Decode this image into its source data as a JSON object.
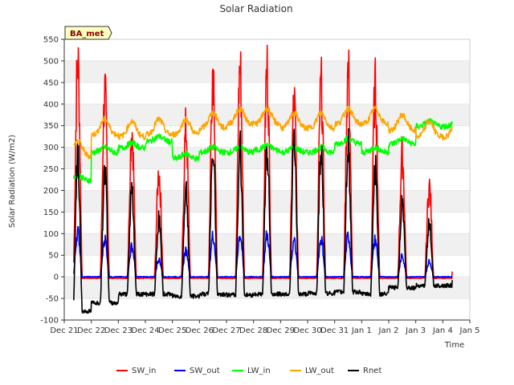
{
  "chart_data": {
    "type": "line",
    "title": "Solar Radiation",
    "xlabel": "Time",
    "ylabel": "Solar Radiation (W/m2)",
    "badge": "BA_met",
    "ylim": [
      -100,
      550
    ],
    "yticks": [
      -100,
      -50,
      0,
      50,
      100,
      150,
      200,
      250,
      300,
      350,
      400,
      450,
      500,
      550
    ],
    "xlim": [
      0,
      15
    ],
    "xticks": [
      {
        "x": 0,
        "label": "Dec 21"
      },
      {
        "x": 1,
        "label": "Dec 22"
      },
      {
        "x": 2,
        "label": "Dec 23"
      },
      {
        "x": 3,
        "label": "Dec 24"
      },
      {
        "x": 4,
        "label": "Dec 25"
      },
      {
        "x": 5,
        "label": "Dec 26"
      },
      {
        "x": 6,
        "label": "Dec 27"
      },
      {
        "x": 7,
        "label": "Dec 28"
      },
      {
        "x": 8,
        "label": "Dec 29"
      },
      {
        "x": 9,
        "label": "Dec 30"
      },
      {
        "x": 10,
        "label": "Dec 31"
      },
      {
        "x": 11,
        "label": "Jan 1"
      },
      {
        "x": 12,
        "label": "Jan 2"
      },
      {
        "x": 13,
        "label": "Jan 3"
      },
      {
        "x": 14,
        "label": "Jan 4"
      },
      {
        "x": 15,
        "label": "Jan 5"
      }
    ],
    "x_start": 0.35,
    "x_end": 14.35,
    "noon_offset": 0.5,
    "day_width": 0.17,
    "daily_peaks": {
      "SW_in": [
        498,
        425,
        340,
        240,
        340,
        488,
        483,
        480,
        403,
        440,
        475,
        435,
        278,
        208
      ],
      "SW_out": [
        105,
        88,
        70,
        40,
        60,
        95,
        98,
        97,
        82,
        88,
        95,
        85,
        48,
        35
      ],
      "Rnet": [
        270,
        245,
        200,
        130,
        200,
        305,
        295,
        298,
        305,
        298,
        298,
        250,
        170,
        120
      ]
    },
    "night_levels": {
      "SW_in": -3,
      "SW_out": 0,
      "Rnet": [
        -80,
        -60,
        -40,
        -40,
        -45,
        -40,
        -42,
        -40,
        -40,
        -38,
        -35,
        -40,
        -25,
        -20
      ]
    },
    "longwave": {
      "LW_in": [
        235,
        300,
        310,
        325,
        285,
        300,
        300,
        305,
        300,
        300,
        320,
        300,
        320,
        360
      ],
      "LW_out": [
        315,
        365,
        360,
        365,
        365,
        380,
        390,
        390,
        380,
        380,
        390,
        390,
        375,
        360
      ]
    },
    "series": [
      {
        "name": "SW_in",
        "color": "#ff0000"
      },
      {
        "name": "SW_out",
        "color": "#0000ff"
      },
      {
        "name": "LW_in",
        "color": "#00ff00"
      },
      {
        "name": "LW_out",
        "color": "#ffa500"
      },
      {
        "name": "Rnet",
        "color": "#000000"
      }
    ],
    "grid": true,
    "legend_position": "bottom"
  }
}
